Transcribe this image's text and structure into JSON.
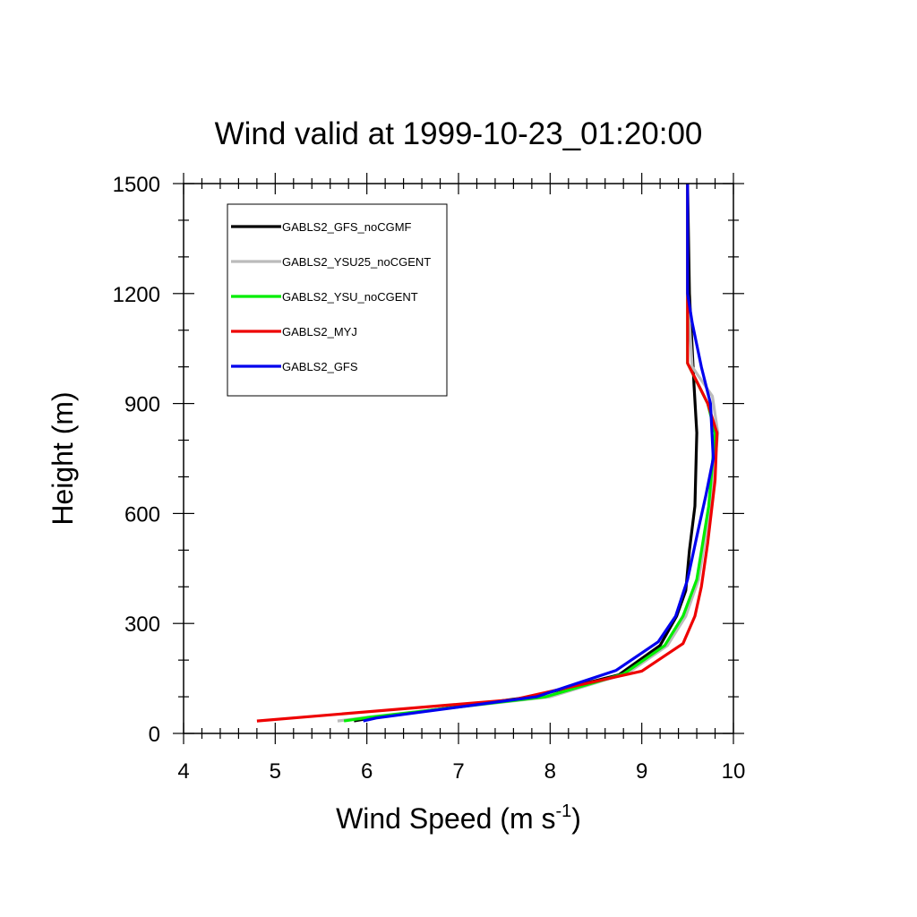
{
  "chart_data": {
    "type": "line",
    "title": "Wind valid at 1999-10-23_01:20:00",
    "xlabel": {
      "main": "Wind Speed (m s",
      "sup": "-1",
      "end": ")"
    },
    "ylabel": "Height (m)",
    "xlim": [
      4,
      10
    ],
    "ylim": [
      0,
      1500
    ],
    "xticks": [
      4,
      5,
      6,
      7,
      8,
      9,
      10
    ],
    "yticks": [
      0,
      300,
      600,
      900,
      1200,
      1500
    ],
    "xtick_labels": [
      "4",
      "5",
      "6",
      "7",
      "8",
      "9",
      "10"
    ],
    "ytick_labels": [
      "0",
      "300",
      "600",
      "900",
      "1200",
      "1500"
    ],
    "x_minor_step": 0.2,
    "y_minor_step": 100,
    "grid": false,
    "legend_position": "top-left",
    "series": [
      {
        "name": "GABLS2_GFS_noCGMF",
        "color": "#000000",
        "points": [
          [
            5.86,
            34
          ],
          [
            6.0,
            40
          ],
          [
            7.8,
            100
          ],
          [
            8.75,
            160
          ],
          [
            9.2,
            240
          ],
          [
            9.38,
            320
          ],
          [
            9.48,
            390
          ],
          [
            9.52,
            500
          ],
          [
            9.58,
            620
          ],
          [
            9.6,
            820
          ],
          [
            9.57,
            950
          ],
          [
            9.52,
            1200
          ],
          [
            9.5,
            1500
          ]
        ]
      },
      {
        "name": "GABLS2_YSU25_noCGENT",
        "color": "#bbbbbb",
        "points": [
          [
            5.68,
            34
          ],
          [
            6.0,
            44
          ],
          [
            8.0,
            100
          ],
          [
            8.85,
            165
          ],
          [
            9.28,
            240
          ],
          [
            9.48,
            320
          ],
          [
            9.62,
            420
          ],
          [
            9.75,
            620
          ],
          [
            9.83,
            820
          ],
          [
            9.77,
            920
          ],
          [
            9.55,
            1000
          ],
          [
            9.5,
            1200
          ],
          [
            9.5,
            1500
          ]
        ]
      },
      {
        "name": "GABLS2_YSU_noCGENT",
        "color": "#00ee00",
        "points": [
          [
            5.75,
            34
          ],
          [
            6.0,
            43
          ],
          [
            7.95,
            100
          ],
          [
            8.8,
            162
          ],
          [
            9.25,
            240
          ],
          [
            9.45,
            320
          ],
          [
            9.6,
            420
          ],
          [
            9.73,
            620
          ],
          [
            9.8,
            820
          ],
          [
            9.72,
            900
          ],
          [
            9.5,
            1010
          ],
          [
            9.5,
            1200
          ],
          [
            9.5,
            1500
          ]
        ]
      },
      {
        "name": "GABLS2_MYJ",
        "color": "#ee0000",
        "points": [
          [
            4.8,
            34
          ],
          [
            7.6,
            92
          ],
          [
            9.0,
            170
          ],
          [
            9.45,
            245
          ],
          [
            9.58,
            320
          ],
          [
            9.65,
            400
          ],
          [
            9.72,
            520
          ],
          [
            9.8,
            690
          ],
          [
            9.82,
            820
          ],
          [
            9.72,
            900
          ],
          [
            9.6,
            960
          ],
          [
            9.5,
            1010
          ],
          [
            9.5,
            1200
          ],
          [
            9.5,
            1500
          ]
        ]
      },
      {
        "name": "GABLS2_GFS",
        "color": "#0000ee",
        "points": [
          [
            5.96,
            34
          ],
          [
            6.1,
            42
          ],
          [
            7.85,
            100
          ],
          [
            8.72,
            172
          ],
          [
            9.18,
            250
          ],
          [
            9.37,
            320
          ],
          [
            9.5,
            420
          ],
          [
            9.62,
            560
          ],
          [
            9.7,
            650
          ],
          [
            9.78,
            750
          ],
          [
            9.75,
            900
          ],
          [
            9.65,
            1000
          ],
          [
            9.55,
            1120
          ],
          [
            9.5,
            1200
          ],
          [
            9.5,
            1500
          ]
        ]
      }
    ]
  }
}
